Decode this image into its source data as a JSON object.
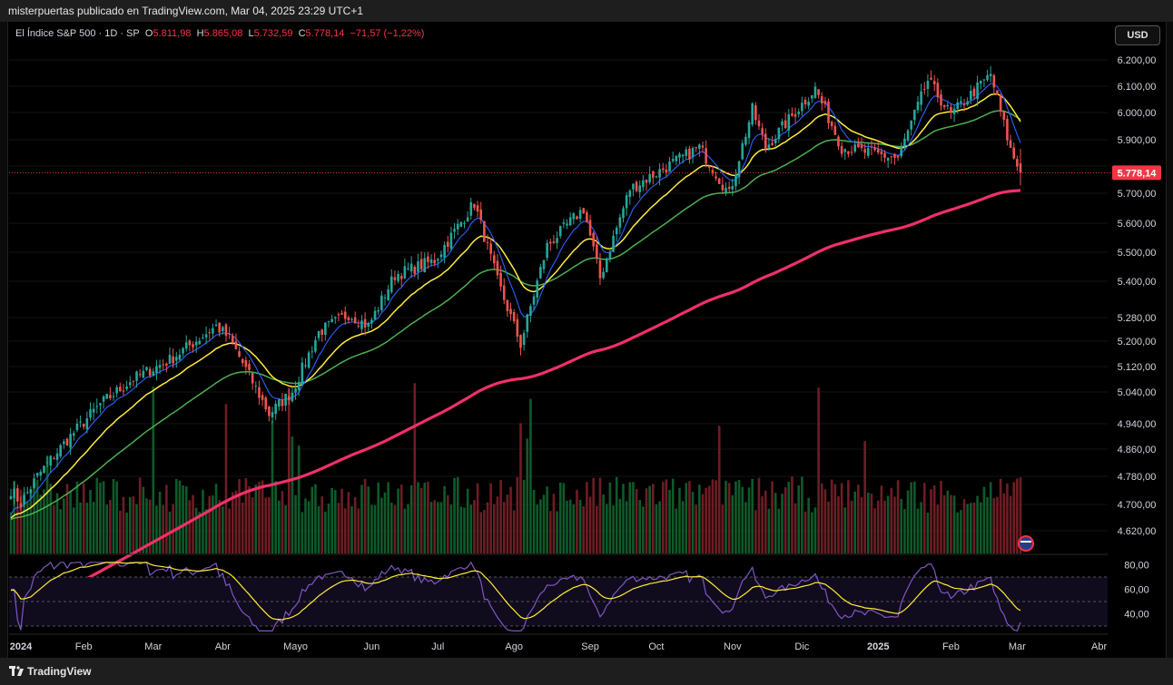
{
  "header": {
    "publisher_text": "misterpuertas publicado en TradingView.com, Mar 04, 2025 23:29 UTC+1"
  },
  "legend": {
    "symbol": "El Índice S&P 500 · 1D · SP",
    "open_label": "O",
    "open": "5.811,98",
    "high_label": "H",
    "high": "5.865,08",
    "low_label": "L",
    "low": "5.732,59",
    "close_label": "C",
    "close": "5.778,14",
    "change": "−71,57 (−1,22%)"
  },
  "currency_button": "USD",
  "last_price_label": "5.778,14",
  "footer": {
    "brand": "TradingView"
  },
  "colors": {
    "up": "#26a69a",
    "down": "#ef5350",
    "ema_fast": "#2962ff",
    "ema_mid": "#ffeb3b",
    "ema_slow": "#4caf50",
    "sma_long": "#f0306a",
    "rsi": "#7e57c2",
    "rsi_ma": "#ffeb3b"
  },
  "icons": {
    "footer": "tradingview-logo-icon",
    "flag": "us-flag-icon"
  },
  "chart_data": {
    "type": "candlestick",
    "title": "",
    "x_tick_labels": [
      "2024",
      "Feb",
      "Mar",
      "Abr",
      "Mayo",
      "Jun",
      "Jul",
      "Ago",
      "Sep",
      "Oct",
      "Nov",
      "Dic",
      "2025",
      "Feb",
      "Mar",
      "Abr"
    ],
    "y_tick_labels": [
      "6.200,00",
      "6.100,00",
      "6.000,00",
      "5.900,00",
      "5.800,00",
      "5.700,00",
      "5.600,00",
      "5.500,00",
      "5.400,00",
      "5.280,00",
      "5.200,00",
      "5.120,00",
      "5.040,00",
      "4.940,00",
      "4.860,00",
      "4.780,00",
      "4.700,00",
      "4.620,00"
    ],
    "y_tick_values": [
      6200,
      6100,
      6000,
      5900,
      5800,
      5700,
      5600,
      5500,
      5400,
      5280,
      5200,
      5120,
      5040,
      4940,
      4860,
      4780,
      4700,
      4620
    ],
    "price_anchors": [
      [
        "2024-01-02",
        4740
      ],
      [
        "2024-01-05",
        4700
      ],
      [
        "2024-01-12",
        4780
      ],
      [
        "2024-01-25",
        4890
      ],
      [
        "2024-02-08",
        5000
      ],
      [
        "2024-02-22",
        5080
      ],
      [
        "2024-03-08",
        5140
      ],
      [
        "2024-03-28",
        5250
      ],
      [
        "2024-04-03",
        5210
      ],
      [
        "2024-04-19",
        4970
      ],
      [
        "2024-04-30",
        5040
      ],
      [
        "2024-05-10",
        5230
      ],
      [
        "2024-05-23",
        5290
      ],
      [
        "2024-05-31",
        5250
      ],
      [
        "2024-06-12",
        5420
      ],
      [
        "2024-06-28",
        5470
      ],
      [
        "2024-07-16",
        5670
      ],
      [
        "2024-07-25",
        5400
      ],
      [
        "2024-08-05",
        5190
      ],
      [
        "2024-08-15",
        5520
      ],
      [
        "2024-08-30",
        5650
      ],
      [
        "2024-09-06",
        5410
      ],
      [
        "2024-09-19",
        5720
      ],
      [
        "2024-10-18",
        5870
      ],
      [
        "2024-10-31",
        5700
      ],
      [
        "2024-11-11",
        6010
      ],
      [
        "2024-11-15",
        5870
      ],
      [
        "2024-12-06",
        6090
      ],
      [
        "2024-12-18",
        5870
      ],
      [
        "2025-01-10",
        5830
      ],
      [
        "2025-01-23",
        6120
      ],
      [
        "2025-02-03",
        5990
      ],
      [
        "2025-02-19",
        6144
      ],
      [
        "2025-02-27",
        5860
      ],
      [
        "2025-03-04",
        5778
      ]
    ],
    "last_candle": {
      "open": 5811.98,
      "high": 5865.08,
      "low": 5732.59,
      "close": 5778.14
    },
    "series": [
      {
        "type": "ema"
      },
      {
        "type": "ema"
      },
      {
        "type": "ema"
      },
      {
        "type": "sma"
      }
    ],
    "rsi_panel": {
      "y_tick_labels": [
        "80,00",
        "60,00",
        "40,00"
      ],
      "levels": [
        70,
        50,
        30
      ],
      "last_value": 33
    }
  }
}
